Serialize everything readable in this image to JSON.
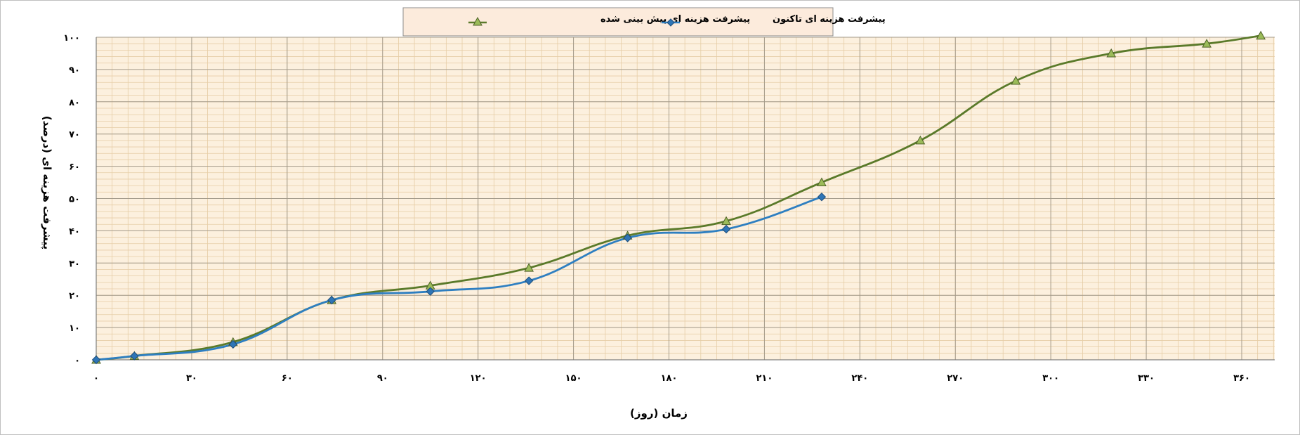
{
  "chart_data": {
    "type": "line",
    "xlabel": "زمان (روز)",
    "ylabel": "پیشرفت هزینه ای (درصد)",
    "xlim": [
      0,
      366
    ],
    "ylim": [
      0,
      100
    ],
    "x_ticks": [
      0,
      30,
      60,
      90,
      120,
      150,
      180,
      210,
      240,
      270,
      300,
      330,
      360
    ],
    "x_tick_labels": [
      "۰",
      "۳۰",
      "۶۰",
      "۹۰",
      "۱۲۰",
      "۱۵۰",
      "۱۸۰",
      "۲۱۰",
      "۲۴۰",
      "۲۷۰",
      "۳۰۰",
      "۳۳۰",
      "۳۶۰"
    ],
    "y_ticks": [
      0,
      10,
      20,
      30,
      40,
      50,
      60,
      70,
      80,
      90,
      100
    ],
    "y_tick_labels": [
      "۰",
      "۱۰",
      "۲۰",
      "۳۰",
      "۴۰",
      "۵۰",
      "۶۰",
      "۷۰",
      "۸۰",
      "۹۰",
      "۱۰۰"
    ],
    "grid": true,
    "legend_position": "top",
    "background_color": "#fcf0de",
    "series": [
      {
        "name": "پیشرفت هزینه ای پیش بینی شده",
        "color": "#5a7a2a",
        "marker": "triangle",
        "marker_color": "#9bbb59",
        "x": [
          0,
          12,
          43,
          74,
          105,
          136,
          167,
          198,
          228,
          259,
          289,
          319,
          349,
          366
        ],
        "y": [
          0,
          1.2,
          5.5,
          18.5,
          23,
          28.5,
          38.5,
          43,
          55,
          68,
          86.5,
          95,
          98,
          100.5
        ]
      },
      {
        "name": "پیشرفت هزینه ای تاکنون",
        "color": "#2e7fc1",
        "marker": "diamond",
        "marker_color": "#2e75b6",
        "x": [
          0,
          12,
          43,
          74,
          105,
          136,
          167,
          198,
          228
        ],
        "y": [
          0,
          1.2,
          4.8,
          18.5,
          21.2,
          24.5,
          37.8,
          40.5,
          50.5
        ]
      }
    ]
  }
}
